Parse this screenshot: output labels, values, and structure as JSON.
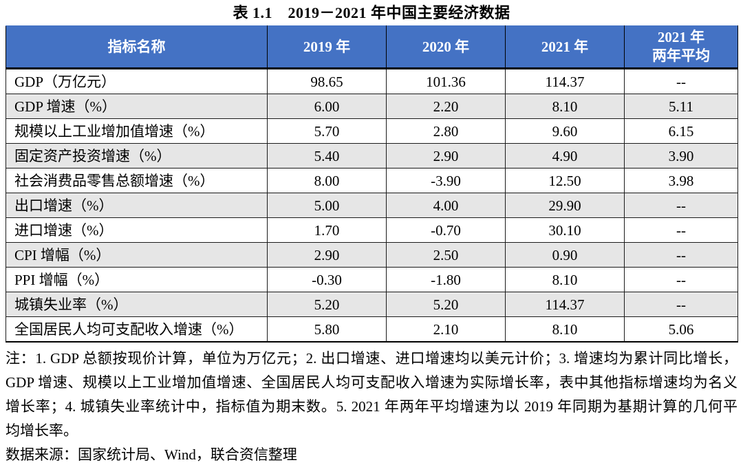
{
  "title": "表 1.1 2019－2021 年中国主要经济数据",
  "accent_colors": {
    "header_background": "#4472C4",
    "header_text": "#FFFFFF",
    "stripe_row": "#E6E6E6",
    "border": "#000000"
  },
  "chart_data": {
    "type": "table",
    "title": "表 1.1 2019－2021 年中国主要经济数据",
    "columns": [
      "指标名称",
      "2019 年",
      "2020 年",
      "2021 年",
      "2021 年\n两年平均"
    ],
    "rows": [
      {
        "label": "GDP（万亿元）",
        "values": [
          "98.65",
          "101.36",
          "114.37",
          "--"
        ]
      },
      {
        "label": "GDP 增速（%）",
        "values": [
          "6.00",
          "2.20",
          "8.10",
          "5.11"
        ]
      },
      {
        "label": "规模以上工业增加值增速（%）",
        "values": [
          "5.70",
          "2.80",
          "9.60",
          "6.15"
        ]
      },
      {
        "label": "固定资产投资增速（%）",
        "values": [
          "5.40",
          "2.90",
          "4.90",
          "3.90"
        ]
      },
      {
        "label": "社会消费品零售总额增速（%）",
        "values": [
          "8.00",
          "-3.90",
          "12.50",
          "3.98"
        ]
      },
      {
        "label": "出口增速（%）",
        "values": [
          "5.00",
          "4.00",
          "29.90",
          "--"
        ]
      },
      {
        "label": "进口增速（%）",
        "values": [
          "1.70",
          "-0.70",
          "30.10",
          "--"
        ]
      },
      {
        "label": "CPI 增幅（%）",
        "values": [
          "2.90",
          "2.50",
          "0.90",
          "--"
        ]
      },
      {
        "label": "PPI 增幅（%）",
        "values": [
          "-0.30",
          "-1.80",
          "8.10",
          "--"
        ]
      },
      {
        "label": "城镇失业率（%）",
        "values": [
          "5.20",
          "5.20",
          "114.37",
          "--"
        ]
      },
      {
        "label": "全国居民人均可支配收入增速（%）",
        "values": [
          "5.80",
          "2.10",
          "8.10",
          "5.06"
        ]
      }
    ]
  },
  "notes": {
    "line1": "注：1. GDP 总额按现价计算，单位为万亿元；2. 出口增速、进口增速均以美元计价；3. 增速均为累计同比增长，",
    "line2": "GDP 增速、规模以上工业增加值增速、全国居民人均可支配收入增速为实际增长率，表中其他指标增速均为名义",
    "line3": "增长率；4. 城镇失业率统计中，指标值为期末数。5. 2021 年两年平均增速为以 2019 年同期为基期计算的几何平",
    "line4": "均增长率。",
    "source": "数据来源：国家统计局、Wind，联合资信整理"
  }
}
